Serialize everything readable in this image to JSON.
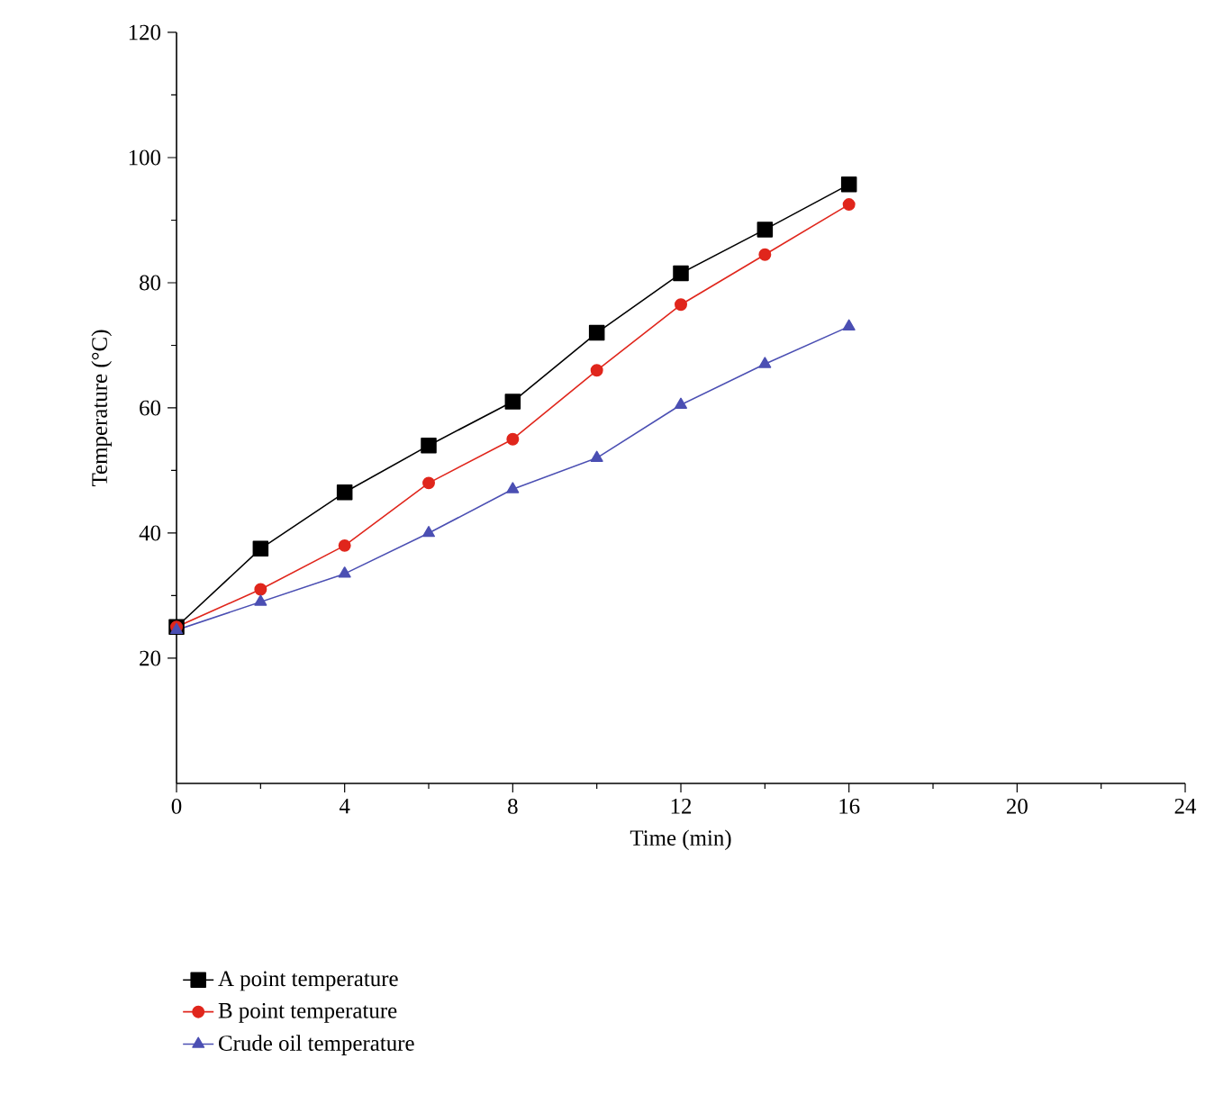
{
  "chart_data": {
    "type": "line",
    "xlabel": "Time (min)",
    "ylabel": "Temperature (°C)",
    "x": [
      0,
      2,
      4,
      6,
      8,
      10,
      12,
      14,
      16
    ],
    "series": [
      {
        "name": "A point temperature",
        "color": "#000000",
        "marker": "square",
        "values": [
          25,
          37.5,
          46.5,
          54,
          61,
          72,
          81.5,
          88.5,
          95.7
        ]
      },
      {
        "name": "B point temperature",
        "color": "#e0261c",
        "marker": "circle",
        "values": [
          25,
          31,
          38,
          48,
          55,
          66,
          76.5,
          84.5,
          92.5
        ]
      },
      {
        "name": "Crude oil temperature",
        "color": "#4b4fb3",
        "marker": "triangle",
        "values": [
          24.5,
          29,
          33.5,
          40,
          47,
          52,
          60.5,
          67,
          73
        ]
      }
    ],
    "xlim": [
      0,
      24
    ],
    "ylim": [
      0,
      120
    ],
    "xticks": [
      0,
      4,
      8,
      12,
      16,
      20,
      24
    ],
    "yticks": [
      20,
      40,
      60,
      80,
      100,
      120
    ],
    "grid": false,
    "legend": "bottom left",
    "line_style": "solid"
  }
}
